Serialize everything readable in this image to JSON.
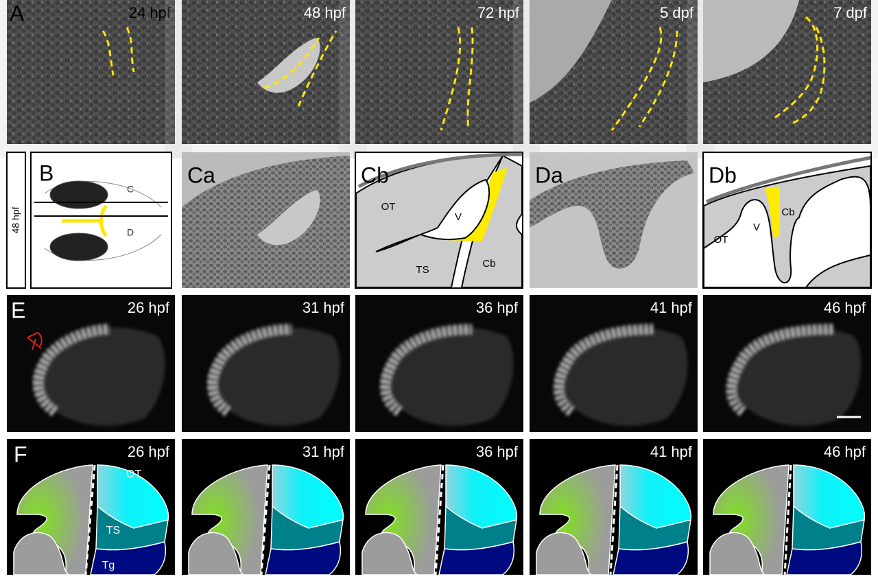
{
  "row_a": {
    "label": "A",
    "panels": [
      "24 hpf",
      "48 hpf",
      "72 hpf",
      "5 dpf",
      "7 dpf"
    ]
  },
  "row_b": {
    "stage": "48 hpf",
    "b": {
      "label": "B",
      "lines": [
        "C",
        "D"
      ]
    },
    "ca": {
      "label": "Ca"
    },
    "cb": {
      "label": "Cb",
      "regions": [
        "OT",
        "V",
        "TS",
        "Cb"
      ]
    },
    "da": {
      "label": "Da"
    },
    "db": {
      "label": "Db",
      "regions": [
        "Cb",
        "V",
        "OT"
      ]
    }
  },
  "row_e": {
    "label": "E",
    "panels": [
      "26 hpf",
      "31 hpf",
      "36 hpf",
      "41 hpf",
      "46 hpf"
    ]
  },
  "row_f": {
    "label": "F",
    "panels": [
      "26 hpf",
      "31 hpf",
      "36 hpf",
      "41 hpf",
      "46 hpf"
    ],
    "regions": [
      "OT",
      "TS",
      "Tg"
    ]
  }
}
